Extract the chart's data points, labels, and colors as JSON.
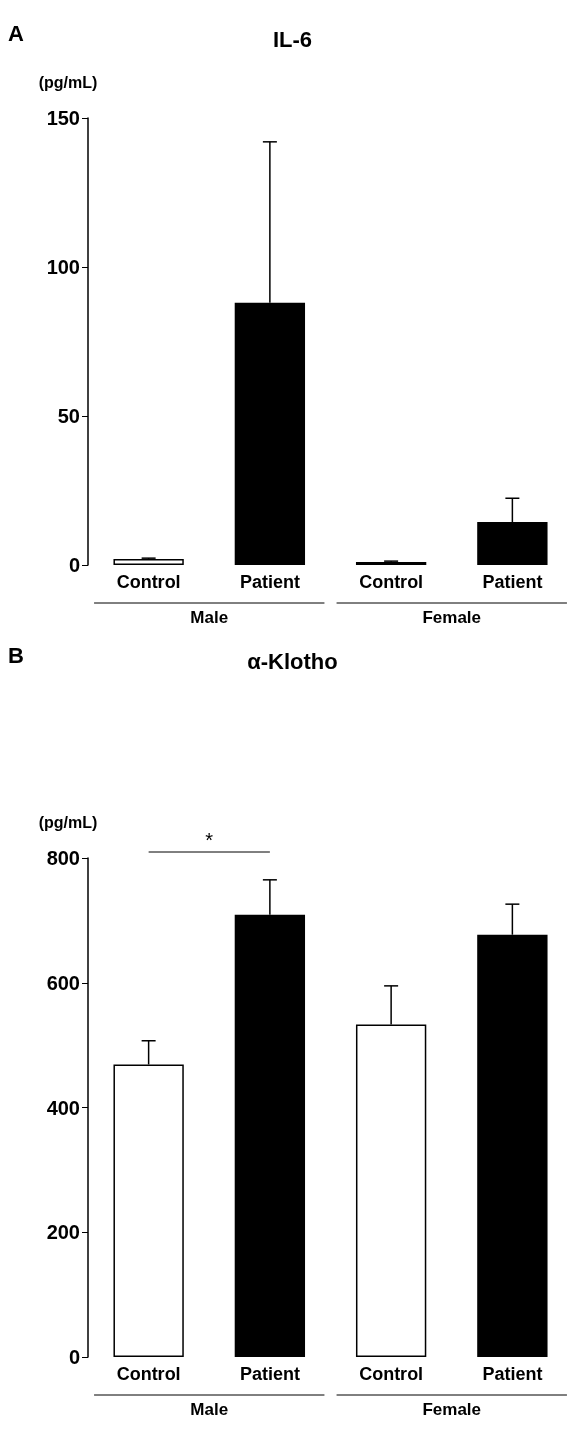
{
  "chart_data": [
    {
      "type": "bar",
      "title": "IL-6",
      "ylabel": "(pg/mL)",
      "annotations": [
        "A",
        "Male",
        "Female"
      ],
      "categories": [
        "Control",
        "Patient",
        "Control",
        "Patient"
      ],
      "values": [
        2,
        88,
        1,
        14.4
      ],
      "errors": [
        0.3,
        54,
        0.3,
        8
      ],
      "colors": [
        "#ffffff",
        "#000000",
        "#ffffff",
        "#000000"
      ],
      "ylim": [
        0,
        150
      ],
      "yticks": [
        0,
        50,
        100,
        150
      ],
      "grid": false
    },
    {
      "type": "bar",
      "title": "α-Klotho",
      "ylabel": "(pg/mL)",
      "annotations": [
        "B",
        "*",
        "Male",
        "Female"
      ],
      "categories": [
        "Control",
        "Patient",
        "Control",
        "Patient"
      ],
      "values": [
        469,
        709,
        533,
        677
      ],
      "errors": [
        38,
        56,
        62,
        49
      ],
      "colors": [
        "#ffffff",
        "#000000",
        "#ffffff",
        "#000000"
      ],
      "ylim": [
        0,
        800
      ],
      "yticks": [
        0,
        200,
        400,
        600,
        800
      ],
      "grid": false
    }
  ]
}
